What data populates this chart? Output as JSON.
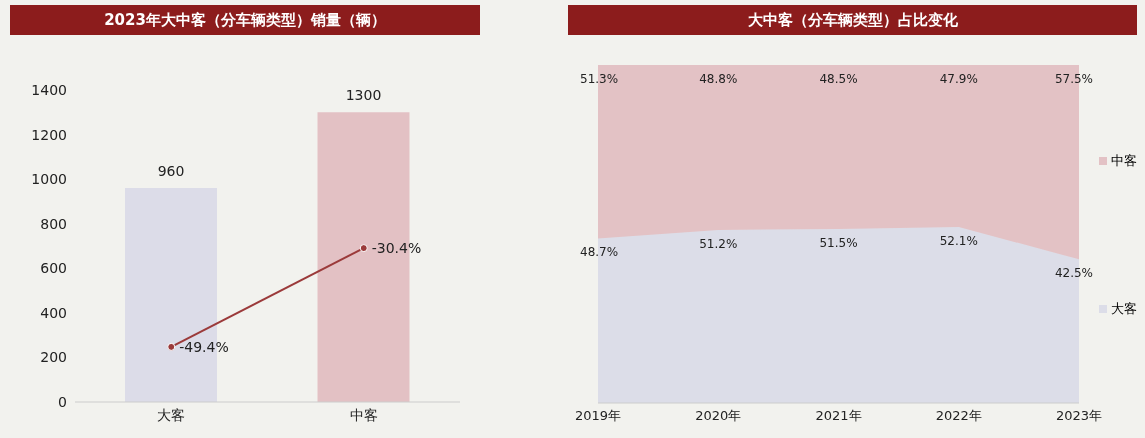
{
  "chart_data": [
    {
      "type": "bar",
      "title": "2023年大中客（分车辆类型）销量（辆）",
      "categories": [
        "大客",
        "中客"
      ],
      "ylim": [
        0,
        1400
      ],
      "yticks": [
        0,
        200,
        400,
        600,
        800,
        1000,
        1200,
        1400
      ],
      "y2lim": [
        -60,
        0
      ],
      "data_labels": true,
      "tick_labels": "xy",
      "marker": "circle",
      "series": [
        {
          "type": "bar",
          "colors": [
            "#dcdce8",
            "#e3c1c4"
          ],
          "values": [
            960,
            1300
          ]
        },
        {
          "type": "line",
          "axis": "y2",
          "color": "#9b3a3a",
          "values": [
            -49.4,
            -30.4
          ],
          "value_labels": [
            "-49.4%",
            "-30.4%"
          ]
        }
      ]
    },
    {
      "type": "area",
      "title": "大中客（分车辆类型）占比变化",
      "categories": [
        "2019年",
        "2020年",
        "2021年",
        "2022年",
        "2023年"
      ],
      "stacked": true,
      "ylim": [
        0,
        100
      ],
      "tick_labels": "x",
      "legend": "right",
      "series": [
        {
          "name": "大客",
          "color": "#dcdde8",
          "values": [
            48.7,
            51.2,
            51.5,
            52.1,
            42.5
          ],
          "value_labels": [
            "48.7%",
            "51.2%",
            "51.5%",
            "52.1%",
            "42.5%"
          ]
        },
        {
          "name": "中客",
          "color": "#e3c2c5",
          "values": [
            51.3,
            48.8,
            48.5,
            47.9,
            57.5
          ],
          "value_labels": [
            "51.3%",
            "48.8%",
            "48.5%",
            "47.9%",
            "57.5%"
          ]
        }
      ]
    }
  ]
}
